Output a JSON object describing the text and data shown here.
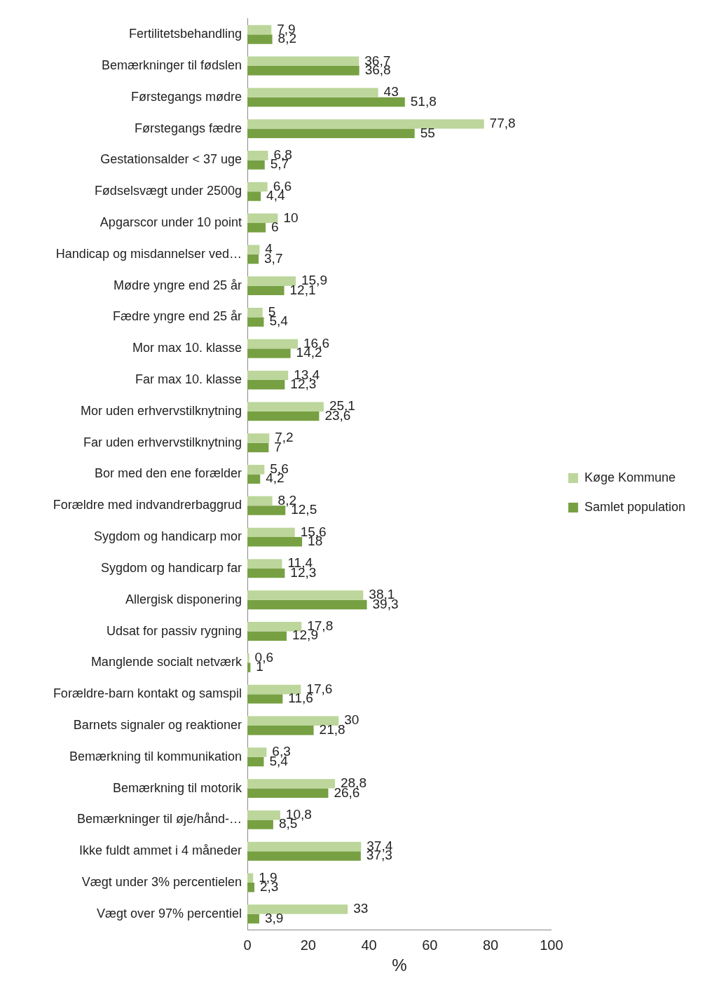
{
  "chart_data": {
    "type": "bar",
    "orientation": "horizontal",
    "xlabel": "%",
    "categories": [
      "Fertilitetsbehandling",
      "Bemærkninger til fødslen",
      "Førstegangs mødre",
      "Førstegangs fædre",
      "Gestationsalder < 37 uge",
      "Fødselsvægt under 2500g",
      "Apgarscor under 10 point",
      "Handicap og misdannelser ved…",
      "Mødre yngre end 25 år",
      "Fædre yngre end 25 år",
      "Mor max 10. klasse",
      "Far max 10. klasse",
      "Mor uden erhvervstilknytning",
      "Far uden erhvervstilknytning",
      "Bor med den ene forælder",
      "Forældre med indvandrerbaggrud",
      "Sygdom og handicarp mor",
      "Sygdom og handicarp far",
      "Allergisk disponering",
      "Udsat for passiv rygning",
      "Manglende socialt netværk",
      "Forældre-barn kontakt og samspil",
      "Barnets signaler og reaktioner",
      "Bemærkning til kommunikation",
      "Bemærkning til motorik",
      "Bemærkninger til øje/hånd-…",
      "Ikke fuldt ammet i 4 måneder",
      "Vægt under 3% percentielen",
      "Vægt over 97% percentiel"
    ],
    "series": [
      {
        "name": "Køge Kommune",
        "color": "#bcd69b",
        "values": [
          7.9,
          36.7,
          43,
          77.8,
          6.8,
          6.6,
          10,
          4,
          15.9,
          5,
          16.6,
          13.4,
          25.1,
          7.2,
          5.6,
          8.2,
          15.6,
          11.4,
          38.1,
          17.8,
          0.6,
          17.6,
          30,
          6.3,
          28.8,
          10.8,
          37.4,
          1.9,
          33
        ],
        "value_labels": [
          "7,9",
          "36,7",
          "43",
          "77,8",
          "6,8",
          "6,6",
          "10",
          "4",
          "15,9",
          "5",
          "16,6",
          "13,4",
          "25,1",
          "7,2",
          "5,6",
          "8,2",
          "15,6",
          "11,4",
          "38,1",
          "17,8",
          "0,6",
          "17,6",
          "30",
          "6,3",
          "28,8",
          "10,8",
          "37,4",
          "1,9",
          "33"
        ]
      },
      {
        "name": "Samlet population",
        "color": "#77a043",
        "values": [
          8.2,
          36.8,
          51.8,
          55,
          5.7,
          4.4,
          6,
          3.7,
          12.1,
          5.4,
          14.2,
          12.3,
          23.6,
          7,
          4.2,
          12.5,
          18,
          12.3,
          39.3,
          12.9,
          1,
          11.6,
          21.8,
          5.4,
          26.6,
          8.5,
          37.3,
          2.3,
          3.9
        ],
        "value_labels": [
          "8,2",
          "36,8",
          "51,8",
          "55",
          "5,7",
          "4,4",
          "6",
          "3,7",
          "12,1",
          "5,4",
          "14,2",
          "12,3",
          "23,6",
          "7",
          "4,2",
          "12,5",
          "18",
          "12,3",
          "39,3",
          "12,9",
          "1",
          "11,6",
          "21,8",
          "5,4",
          "26,6",
          "8,5",
          "37,3",
          "2,3",
          "3,9"
        ]
      }
    ],
    "xlim": [
      0,
      100
    ],
    "xticks": [
      0,
      20,
      40,
      60,
      80,
      100
    ],
    "grid": false,
    "legend": "right"
  }
}
